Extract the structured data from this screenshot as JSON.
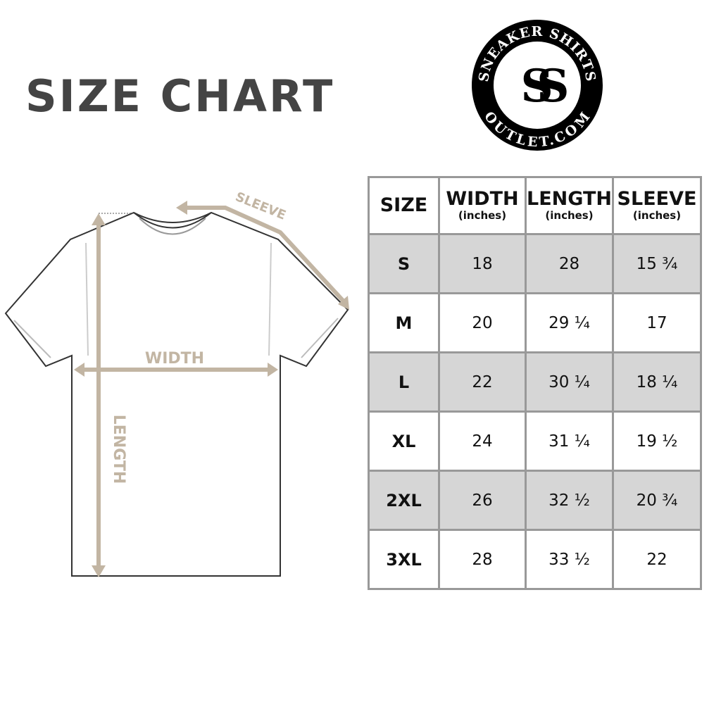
{
  "title": "SIZE CHART",
  "logo": {
    "top_text": "SNEAKER SHIRTS",
    "bottom_text": "OUTLET.COM",
    "monogram": "SS"
  },
  "diagram": {
    "width_label": "WIDTH",
    "length_label": "LENGTH",
    "sleeve_label": "SLEEVE",
    "accent_color": "#c2b5a3"
  },
  "table": {
    "headers": [
      {
        "label": "SIZE",
        "unit": ""
      },
      {
        "label": "WIDTH",
        "unit": "(inches)"
      },
      {
        "label": "LENGTH",
        "unit": "(inches)"
      },
      {
        "label": "SLEEVE",
        "unit": "(inches)"
      }
    ],
    "rows": [
      [
        "S",
        "18",
        "28",
        "15 ¾"
      ],
      [
        "M",
        "20",
        "29 ¼",
        "17"
      ],
      [
        "L",
        "22",
        "30 ¼",
        "18 ¼"
      ],
      [
        "XL",
        "24",
        "31 ¼",
        "19 ½"
      ],
      [
        "2XL",
        "26",
        "32 ½",
        "20 ¾"
      ],
      [
        "3XL",
        "28",
        "33 ½",
        "22"
      ]
    ]
  }
}
